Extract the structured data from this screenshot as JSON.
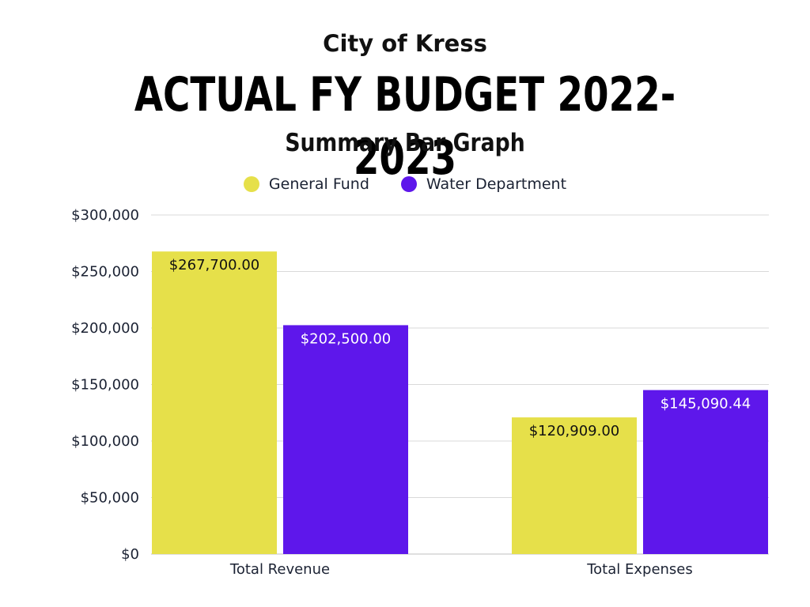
{
  "header": {
    "org": "City of Kress",
    "title": "ACTUAL FY BUDGET 2022-2023",
    "subtitle": "Summary Bar Graph"
  },
  "colors": {
    "general_fund": "#e6e04a",
    "water_department": "#5e17eb",
    "grid": "#d9d9d9",
    "axis_text": "#1b2233"
  },
  "chart_data": {
    "type": "bar",
    "title": "Summary Bar Graph",
    "categories": [
      "Total Revenue",
      "Total Expenses"
    ],
    "series": [
      {
        "name": "General Fund",
        "values": [
          267700.0,
          120909.0
        ],
        "labels": [
          "$267,700.00",
          "$120,909.00"
        ],
        "color": "#e6e04a",
        "label_color": "#111111"
      },
      {
        "name": "Water Department",
        "values": [
          202500.0,
          145090.44
        ],
        "labels": [
          "$202,500.00",
          "$145,090.44"
        ],
        "color": "#5e17eb",
        "label_color": "#ffffff"
      }
    ],
    "ylim": [
      0,
      300000
    ],
    "yticks": [
      0,
      50000,
      100000,
      150000,
      200000,
      250000,
      300000
    ],
    "ytick_labels": [
      "$0",
      "$50,000",
      "$100,000",
      "$150,000",
      "$200,000",
      "$250,000",
      "$300,000"
    ],
    "xlabel": "",
    "ylabel": "",
    "grid": true,
    "legend_position": "top-center"
  }
}
